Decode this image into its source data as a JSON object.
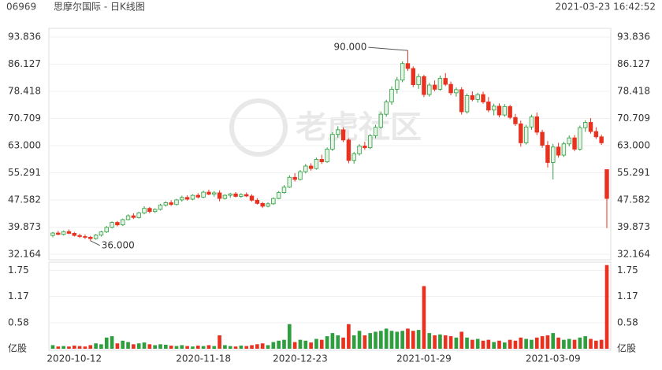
{
  "header": {
    "code": "06969",
    "name": "思摩尔国际 - 日K线图",
    "timestamp": "2021-03-23 16:42:52"
  },
  "watermark": "老虎社区",
  "chart_data": {
    "type": "candlestick",
    "up_color": "#2e9e3e",
    "down_color": "#e8311f",
    "grid": true,
    "categories": [
      null,
      null,
      null,
      null,
      "2020-10-12",
      null,
      null,
      null,
      null,
      null,
      null,
      null,
      null,
      null,
      null,
      null,
      null,
      null,
      null,
      null,
      null,
      null,
      null,
      null,
      null,
      null,
      null,
      null,
      "2020-11-18",
      null,
      null,
      null,
      null,
      null,
      null,
      null,
      null,
      null,
      null,
      null,
      null,
      null,
      null,
      null,
      null,
      null,
      "2020-12-23",
      null,
      null,
      null,
      null,
      null,
      null,
      null,
      null,
      null,
      null,
      null,
      null,
      null,
      null,
      null,
      null,
      null,
      null,
      null,
      null,
      null,
      null,
      "2021-01-29",
      null,
      null,
      null,
      null,
      null,
      null,
      null,
      null,
      null,
      null,
      null,
      null,
      null,
      null,
      null,
      null,
      null,
      null,
      null,
      null,
      null,
      null,
      null,
      "2021-03-09",
      null,
      null,
      null,
      null,
      null,
      null,
      null,
      null,
      null,
      null
    ],
    "ohlc": [
      [
        37.5,
        38.5,
        37,
        38.2
      ],
      [
        38.2,
        38.8,
        37.6,
        37.8
      ],
      [
        37.8,
        38.9,
        37.5,
        38.6
      ],
      [
        38.6,
        39.2,
        37.9,
        38.1
      ],
      [
        38.1,
        38.5,
        37.2,
        37.5
      ],
      [
        37.5,
        38,
        36.8,
        37.2
      ],
      [
        37.2,
        37.8,
        36.5,
        37
      ],
      [
        37,
        37.4,
        36,
        36.6
      ],
      [
        36.6,
        37.9,
        36.3,
        37.6
      ],
      [
        37.6,
        38.8,
        37.2,
        38.5
      ],
      [
        38.5,
        40.2,
        38.2,
        39.8
      ],
      [
        39.8,
        41.5,
        39.5,
        41.2
      ],
      [
        41.2,
        41.6,
        40.1,
        40.5
      ],
      [
        40.5,
        42.3,
        40.2,
        42
      ],
      [
        42,
        43.5,
        41.8,
        43.1
      ],
      [
        43.1,
        43.8,
        42.2,
        42.6
      ],
      [
        42.6,
        44.2,
        42.3,
        43.9
      ],
      [
        43.9,
        45.8,
        43.5,
        45.2
      ],
      [
        45.2,
        45.6,
        43.8,
        44.3
      ],
      [
        44.3,
        45.2,
        43.9,
        44.9
      ],
      [
        44.9,
        46.5,
        44.6,
        46.1
      ],
      [
        46.1,
        47.2,
        45.7,
        46.8
      ],
      [
        46.8,
        47.5,
        45.9,
        46.3
      ],
      [
        46.3,
        47.9,
        46,
        47.6
      ],
      [
        47.6,
        48.8,
        47.1,
        48.3
      ],
      [
        48.3,
        48.9,
        47.4,
        47.8
      ],
      [
        47.8,
        49.2,
        47.5,
        48.9
      ],
      [
        48.9,
        49.5,
        48,
        48.4
      ],
      [
        48.4,
        50.2,
        48.1,
        49.8
      ],
      [
        49.8,
        50.5,
        48.9,
        49.2
      ],
      [
        49.2,
        50.1,
        48.5,
        49.6
      ],
      [
        49.6,
        50.3,
        47.2,
        48
      ],
      [
        48,
        49.2,
        47.7,
        48.9
      ],
      [
        48.9,
        49.6,
        48.2,
        49.3
      ],
      [
        49.3,
        49.8,
        48.3,
        48.6
      ],
      [
        48.6,
        49.5,
        48.2,
        49.1
      ],
      [
        49.1,
        49.7,
        48.4,
        48.7
      ],
      [
        48.7,
        49.2,
        47.1,
        47.5
      ],
      [
        47.5,
        48.1,
        46.3,
        46.6
      ],
      [
        46.6,
        47,
        45.3,
        45.8
      ],
      [
        45.8,
        46.9,
        45.5,
        46.5
      ],
      [
        46.5,
        48.3,
        46.2,
        48
      ],
      [
        48,
        50.1,
        47.8,
        49.7
      ],
      [
        49.7,
        51.8,
        49.4,
        51.2
      ],
      [
        51.2,
        54.6,
        51,
        54
      ],
      [
        54,
        55.2,
        52.8,
        53.4
      ],
      [
        53.4,
        56.1,
        53.1,
        55.6
      ],
      [
        55.6,
        57.8,
        55.1,
        57.2
      ],
      [
        57.2,
        58,
        55.9,
        56.5
      ],
      [
        56.5,
        59.6,
        56.2,
        59.1
      ],
      [
        59.1,
        60.4,
        57.8,
        58.4
      ],
      [
        58.4,
        62.5,
        58.1,
        62
      ],
      [
        62,
        66.8,
        61.5,
        66.2
      ],
      [
        66.2,
        68.5,
        65.3,
        67.5
      ],
      [
        67.5,
        68.2,
        64,
        64.6
      ],
      [
        64.6,
        65.1,
        58,
        58.8
      ],
      [
        58.8,
        61.2,
        57.9,
        60.7
      ],
      [
        60.7,
        63.4,
        60.2,
        62.9
      ],
      [
        62.9,
        64.1,
        61.8,
        62.4
      ],
      [
        62.4,
        66.3,
        62,
        65.8
      ],
      [
        65.8,
        68.9,
        65.1,
        68.2
      ],
      [
        68.2,
        72.5,
        67.8,
        71.9
      ],
      [
        71.9,
        76,
        71.2,
        75.4
      ],
      [
        75.4,
        79.8,
        74.6,
        79
      ],
      [
        79,
        82.5,
        77.8,
        81.6
      ],
      [
        81.6,
        86.9,
        81,
        86.3
      ],
      [
        86.3,
        90,
        84.2,
        84.9
      ],
      [
        84.9,
        85.5,
        79.6,
        80.3
      ],
      [
        80.3,
        83.4,
        79.1,
        82.6
      ],
      [
        82.6,
        83.1,
        76.8,
        77.5
      ],
      [
        77.5,
        80.8,
        76.9,
        80.2
      ],
      [
        80.2,
        81.5,
        78.4,
        79
      ],
      [
        79,
        82.9,
        78.6,
        82.1
      ],
      [
        82.1,
        83.6,
        79.9,
        80.4
      ],
      [
        80.4,
        81.2,
        77.3,
        78
      ],
      [
        78,
        79.5,
        76.9,
        78.9
      ],
      [
        78.9,
        79.6,
        71.8,
        72.6
      ],
      [
        72.6,
        77.8,
        72.1,
        77.2
      ],
      [
        77.2,
        78.4,
        75.6,
        76.1
      ],
      [
        76.1,
        78,
        75.2,
        77.5
      ],
      [
        77.5,
        78.3,
        74.9,
        75.4
      ],
      [
        75.4,
        76.8,
        72.5,
        73.1
      ],
      [
        73.1,
        74.9,
        71.6,
        74.2
      ],
      [
        74.2,
        75,
        71,
        71.7
      ],
      [
        71.7,
        74.8,
        71.2,
        74.1
      ],
      [
        74.1,
        74.6,
        70.5,
        71
      ],
      [
        71,
        72,
        68.6,
        69.2
      ],
      [
        69.2,
        70.1,
        62.7,
        63.8
      ],
      [
        63.8,
        68.9,
        63.3,
        68.3
      ],
      [
        68.3,
        71.8,
        67.5,
        71.2
      ],
      [
        71.2,
        72.4,
        66,
        66.8
      ],
      [
        66.8,
        67.5,
        62.4,
        63.1
      ],
      [
        63.1,
        64.3,
        56.8,
        58.2
      ],
      [
        58.2,
        63.5,
        53.4,
        62.6
      ],
      [
        62.6,
        63.8,
        59.6,
        60.3
      ],
      [
        60.3,
        64.1,
        59.8,
        63.5
      ],
      [
        63.5,
        65.9,
        62.8,
        65.2
      ],
      [
        65.2,
        66,
        61.4,
        62
      ],
      [
        62,
        68.7,
        61.6,
        68.1
      ],
      [
        68.1,
        70.2,
        66.9,
        69.6
      ],
      [
        69.6,
        70.8,
        66.4,
        67
      ],
      [
        67,
        68.2,
        64.9,
        65.5
      ],
      [
        65.5,
        66.1,
        63.2,
        63.8
      ],
      [
        56.2,
        56.2,
        39.6,
        48
      ]
    ],
    "volume": [
      0.08,
      0.05,
      0.06,
      0.05,
      0.07,
      0.06,
      0.05,
      0.08,
      0.12,
      0.1,
      0.25,
      0.28,
      0.12,
      0.18,
      0.15,
      0.1,
      0.12,
      0.14,
      0.1,
      0.08,
      0.1,
      0.09,
      0.07,
      0.06,
      0.08,
      0.06,
      0.05,
      0.07,
      0.06,
      0.08,
      0.06,
      0.3,
      0.08,
      0.06,
      0.05,
      0.07,
      0.06,
      0.08,
      0.1,
      0.12,
      0.08,
      0.15,
      0.18,
      0.2,
      0.55,
      0.15,
      0.2,
      0.18,
      0.14,
      0.22,
      0.2,
      0.28,
      0.35,
      0.3,
      0.25,
      0.55,
      0.3,
      0.4,
      0.3,
      0.35,
      0.38,
      0.4,
      0.45,
      0.4,
      0.38,
      0.4,
      0.45,
      0.4,
      0.42,
      1.4,
      0.35,
      0.3,
      0.32,
      0.3,
      0.28,
      0.25,
      0.38,
      0.25,
      0.2,
      0.22,
      0.18,
      0.2,
      0.15,
      0.18,
      0.14,
      0.2,
      0.18,
      0.25,
      0.22,
      0.2,
      0.25,
      0.28,
      0.3,
      0.35,
      0.25,
      0.2,
      0.22,
      0.2,
      0.25,
      0.28,
      0.22,
      0.18,
      0.2,
      1.87
    ],
    "ylim": [
      32.164,
      93.836
    ],
    "yticks": [
      32.164,
      39.873,
      47.582,
      55.291,
      {
        "value": 63,
        "label": "63.000"
      },
      70.709,
      78.418,
      86.127,
      93.836
    ],
    "vlim": [
      0,
      1.9
    ],
    "vticks": [
      {
        "value": 0,
        "label": "亿股"
      },
      0.58,
      1.17,
      1.75
    ],
    "annotations": [
      {
        "label": "90.000",
        "value": 90,
        "side": "high"
      },
      {
        "label": "36.000",
        "value": 36,
        "side": "low"
      }
    ]
  }
}
